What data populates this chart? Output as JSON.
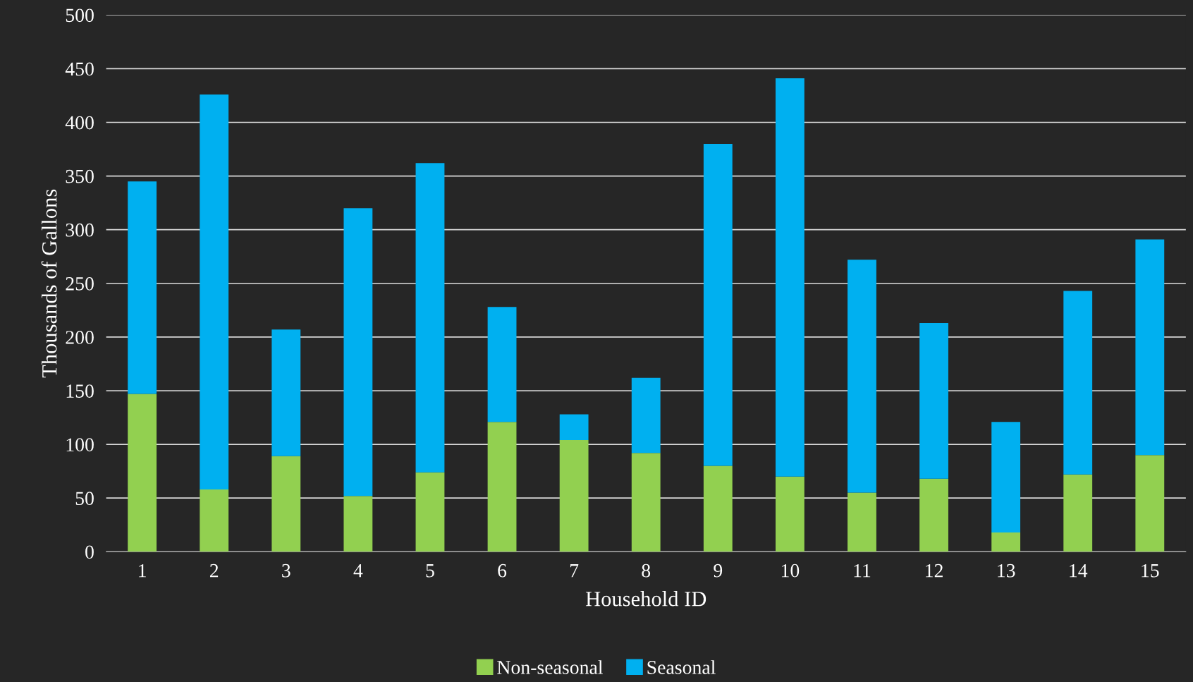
{
  "chart_data": {
    "type": "bar",
    "stacked": true,
    "xlabel": "Household ID",
    "ylabel": "Thousands of Gallons",
    "categories": [
      "1",
      "2",
      "3",
      "4",
      "5",
      "6",
      "7",
      "8",
      "9",
      "10",
      "11",
      "12",
      "13",
      "14",
      "15"
    ],
    "series": [
      {
        "name": "Non-seasonal",
        "color": "#92d050",
        "values": [
          147,
          58,
          89,
          52,
          74,
          121,
          104,
          92,
          80,
          70,
          55,
          68,
          18,
          72,
          90
        ]
      },
      {
        "name": "Seasonal",
        "color": "#00b0f0",
        "values": [
          198,
          368,
          118,
          268,
          288,
          107,
          24,
          70,
          300,
          371,
          217,
          145,
          103,
          171,
          201
        ]
      }
    ],
    "ylim": [
      0,
      500
    ],
    "yticks": [
      0,
      50,
      100,
      150,
      200,
      250,
      300,
      350,
      400,
      450,
      500
    ],
    "grid": "y",
    "legend": "bottom"
  }
}
